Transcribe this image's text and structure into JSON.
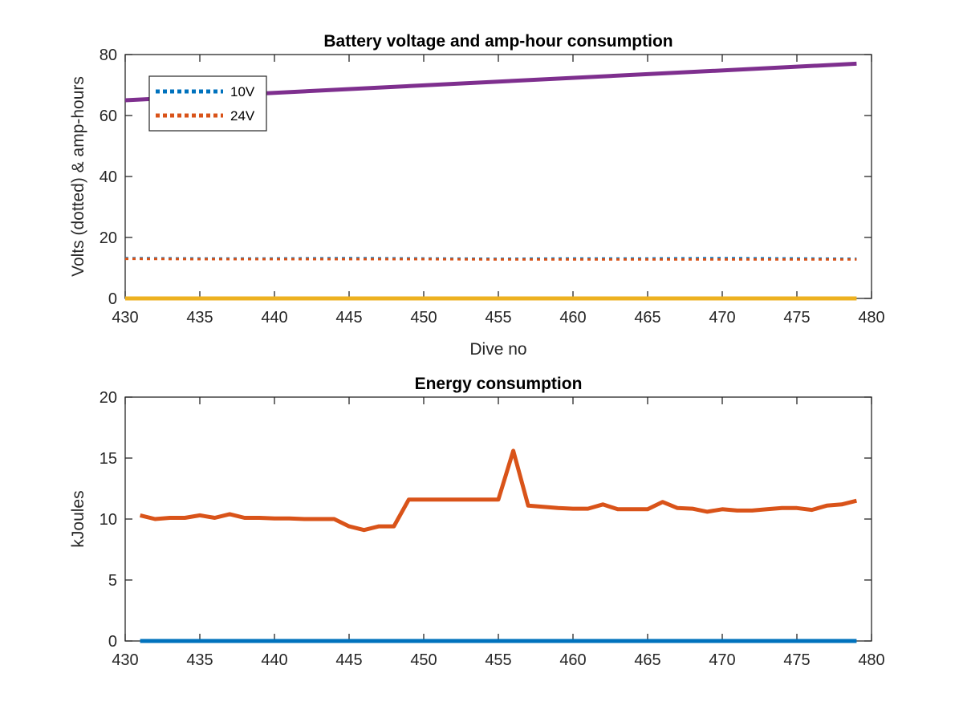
{
  "chart_data": [
    {
      "type": "line",
      "title": "Battery voltage and amp-hour consumption",
      "xlabel": "Dive no",
      "ylabel": "Volts (dotted) & amp-hours",
      "xlim": [
        430,
        480
      ],
      "ylim": [
        0,
        80
      ],
      "xticks": [
        "430",
        "435",
        "440",
        "445",
        "450",
        "455",
        "460",
        "465",
        "470",
        "475",
        "480"
      ],
      "yticks": [
        "0",
        "20",
        "40",
        "60",
        "80"
      ],
      "legend": {
        "placement": "top-left",
        "entries": [
          "10V",
          "24V"
        ]
      },
      "series": [
        {
          "name": "10V",
          "style": "dotted",
          "color": "#0072BD",
          "x": [
            430,
            435,
            440,
            445,
            450,
            455,
            460,
            465,
            470,
            475,
            479
          ],
          "y": [
            13.2,
            13.1,
            13.1,
            13.2,
            13.1,
            13.0,
            13.1,
            13.1,
            13.2,
            13.1,
            13.0
          ]
        },
        {
          "name": "24V",
          "style": "dotted",
          "color": "#D95319",
          "x": [
            430,
            435,
            440,
            445,
            450,
            455,
            460,
            465,
            470,
            475,
            479
          ],
          "y": [
            13.0,
            12.9,
            12.9,
            12.9,
            12.9,
            12.8,
            12.8,
            12.8,
            12.8,
            12.8,
            12.8
          ]
        },
        {
          "style": "solid",
          "color": "#EDB120",
          "x": [
            430,
            479
          ],
          "y": [
            0,
            0
          ]
        },
        {
          "style": "solid",
          "color": "#7E2F8E",
          "x": [
            430,
            479
          ],
          "y": [
            65,
            77
          ]
        }
      ]
    },
    {
      "type": "line",
      "title": "Energy consumption",
      "xlabel": "",
      "ylabel": "kJoules",
      "xlim": [
        430,
        480
      ],
      "ylim": [
        0,
        20
      ],
      "xticks": [
        "430",
        "435",
        "440",
        "445",
        "450",
        "455",
        "460",
        "465",
        "470",
        "475",
        "480"
      ],
      "yticks": [
        "0",
        "5",
        "10",
        "15",
        "20"
      ],
      "series": [
        {
          "style": "solid",
          "color": "#D95319",
          "x": [
            431,
            432,
            433,
            434,
            435,
            436,
            437,
            438,
            439,
            440,
            441,
            442,
            443,
            444,
            445,
            446,
            447,
            448,
            449,
            450,
            451,
            452,
            453,
            454,
            455,
            456,
            457,
            458,
            459,
            460,
            461,
            462,
            463,
            464,
            465,
            466,
            467,
            468,
            469,
            470,
            471,
            472,
            473,
            474,
            475,
            476,
            477,
            478,
            479
          ],
          "y": [
            10.3,
            10.0,
            10.1,
            10.1,
            10.3,
            10.1,
            10.4,
            10.1,
            10.1,
            10.05,
            10.05,
            10.0,
            10.0,
            10.0,
            9.4,
            9.1,
            9.4,
            9.4,
            11.6,
            11.6,
            11.6,
            11.6,
            11.6,
            11.6,
            11.6,
            15.6,
            11.1,
            11.0,
            10.9,
            10.85,
            10.85,
            11.2,
            10.8,
            10.8,
            10.8,
            11.4,
            10.9,
            10.85,
            10.6,
            10.8,
            10.7,
            10.7,
            10.8,
            10.9,
            10.9,
            10.75,
            11.1,
            11.2,
            11.5
          ]
        },
        {
          "style": "solid",
          "color": "#0072BD",
          "x": [
            431,
            479
          ],
          "y": [
            0,
            0
          ]
        }
      ]
    }
  ]
}
